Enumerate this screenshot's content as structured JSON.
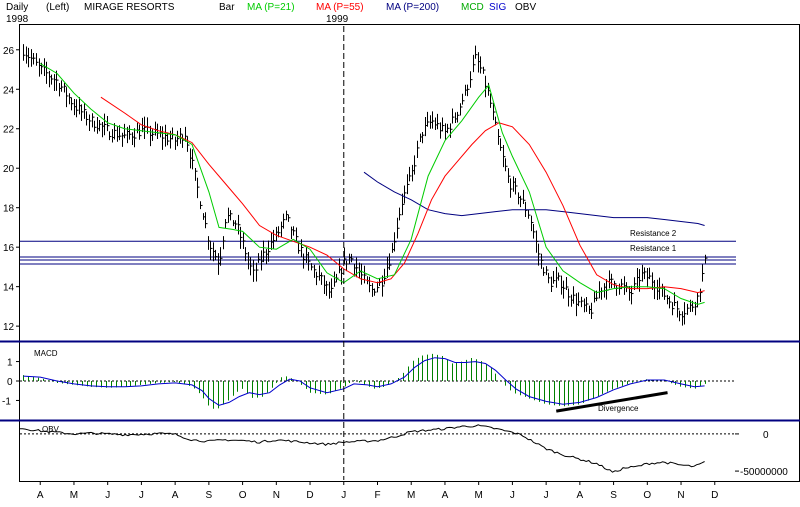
{
  "header": {
    "period": "Daily",
    "scale_side": "(Left)",
    "symbol": "MIRAGE RESORTS",
    "chart_style": "Bar",
    "legend": [
      {
        "label": "MA (P=21)",
        "color": "#00cc00"
      },
      {
        "label": "MA (P=55)",
        "color": "#ff0000"
      },
      {
        "label": "MA (P=200)",
        "color": "#000080"
      },
      {
        "label": "MCD",
        "color": "#00aa00"
      },
      {
        "label": "SIG",
        "color": "#0000cc"
      },
      {
        "label": "OBV",
        "color": "#000000"
      }
    ],
    "year_labels": [
      "1998",
      "1999"
    ]
  },
  "colors": {
    "price_bars": "#000000",
    "ma21": "#00cc00",
    "ma55": "#ff0000",
    "ma200": "#000080",
    "macd_hist": "#008000",
    "macd_signal": "#0000cc",
    "panel_divider": "#000080",
    "resistance": "#000080"
  },
  "chart_data": [
    {
      "type": "bar",
      "panel": "price",
      "x_axis": "month",
      "ylim": [
        11.5,
        26.8
      ],
      "y_ticks": [
        12,
        14,
        16,
        18,
        20,
        22,
        24,
        26
      ],
      "x_month_labels": [
        "A",
        "M",
        "J",
        "J",
        "A",
        "S",
        "O",
        "N",
        "D",
        "J",
        "F",
        "M",
        "A",
        "M",
        "J",
        "J",
        "A",
        "S",
        "O",
        "N",
        "D"
      ],
      "x_range_months": [
        -0.6,
        20.6
      ],
      "year_divider_month": 9,
      "close_series_monthly": [
        [
          -0.5,
          26.0
        ],
        [
          0.0,
          25.0
        ],
        [
          0.5,
          24.4
        ],
        [
          1.0,
          23.2
        ],
        [
          1.5,
          22.4
        ],
        [
          2.0,
          21.9
        ],
        [
          2.5,
          21.6
        ],
        [
          3.0,
          21.9
        ],
        [
          3.5,
          21.7
        ],
        [
          4.0,
          21.4
        ],
        [
          4.3,
          21.8
        ],
        [
          4.6,
          19.5
        ],
        [
          5.0,
          16.2
        ],
        [
          5.3,
          15.2
        ],
        [
          5.5,
          17.6
        ],
        [
          5.8,
          17.2
        ],
        [
          6.0,
          16.2
        ],
        [
          6.3,
          14.6
        ],
        [
          6.6,
          15.6
        ],
        [
          7.0,
          16.6
        ],
        [
          7.3,
          17.5
        ],
        [
          7.6,
          16.2
        ],
        [
          8.0,
          15.0
        ],
        [
          8.3,
          14.4
        ],
        [
          8.6,
          13.6
        ],
        [
          9.0,
          15.2
        ],
        [
          9.2,
          15.5
        ],
        [
          9.5,
          14.6
        ],
        [
          9.8,
          13.8
        ],
        [
          10.1,
          14.2
        ],
        [
          10.4,
          15.6
        ],
        [
          10.7,
          18.2
        ],
        [
          11.0,
          19.6
        ],
        [
          11.3,
          21.8
        ],
        [
          11.6,
          22.4
        ],
        [
          12.0,
          21.8
        ],
        [
          12.3,
          22.6
        ],
        [
          12.6,
          23.8
        ],
        [
          12.9,
          25.6
        ],
        [
          13.1,
          24.8
        ],
        [
          13.3,
          23.6
        ],
        [
          13.6,
          21.2
        ],
        [
          13.9,
          19.3
        ],
        [
          14.2,
          18.6
        ],
        [
          14.5,
          17.6
        ],
        [
          14.8,
          15.4
        ],
        [
          15.1,
          14.2
        ],
        [
          15.4,
          14.3
        ],
        [
          15.7,
          13.6
        ],
        [
          16.0,
          13.1
        ],
        [
          16.3,
          12.7
        ],
        [
          16.6,
          13.9
        ],
        [
          16.9,
          14.2
        ],
        [
          17.2,
          14.1
        ],
        [
          17.5,
          13.6
        ],
        [
          17.8,
          14.6
        ],
        [
          18.1,
          14.4
        ],
        [
          18.4,
          13.8
        ],
        [
          18.7,
          13.2
        ],
        [
          19.0,
          12.7
        ],
        [
          19.3,
          13.0
        ],
        [
          19.5,
          13.5
        ],
        [
          19.7,
          15.2
        ]
      ],
      "ma21_monthly": [
        [
          0.0,
          25.3
        ],
        [
          0.5,
          24.8
        ],
        [
          1.0,
          23.8
        ],
        [
          1.5,
          23.0
        ],
        [
          2.0,
          22.3
        ],
        [
          2.5,
          22.0
        ],
        [
          3.0,
          21.9
        ],
        [
          3.5,
          21.8
        ],
        [
          4.0,
          21.7
        ],
        [
          4.5,
          21.2
        ],
        [
          5.0,
          18.8
        ],
        [
          5.3,
          17.0
        ],
        [
          5.7,
          16.9
        ],
        [
          6.0,
          16.8
        ],
        [
          6.5,
          16.0
        ],
        [
          7.0,
          15.9
        ],
        [
          7.5,
          16.4
        ],
        [
          8.0,
          15.9
        ],
        [
          8.5,
          14.7
        ],
        [
          9.0,
          14.2
        ],
        [
          9.5,
          14.8
        ],
        [
          10.0,
          14.4
        ],
        [
          10.5,
          14.6
        ],
        [
          11.0,
          16.4
        ],
        [
          11.5,
          19.6
        ],
        [
          12.0,
          21.4
        ],
        [
          12.5,
          22.4
        ],
        [
          13.0,
          23.6
        ],
        [
          13.3,
          24.2
        ],
        [
          13.7,
          21.8
        ],
        [
          14.0,
          20.6
        ],
        [
          14.5,
          18.8
        ],
        [
          15.0,
          16.0
        ],
        [
          15.5,
          14.8
        ],
        [
          16.0,
          14.2
        ],
        [
          16.5,
          13.7
        ],
        [
          17.0,
          13.9
        ],
        [
          17.5,
          14.0
        ],
        [
          18.0,
          14.0
        ],
        [
          18.5,
          13.9
        ],
        [
          19.0,
          13.4
        ],
        [
          19.5,
          13.1
        ],
        [
          19.7,
          13.2
        ]
      ],
      "ma55_monthly": [
        [
          1.8,
          23.6
        ],
        [
          2.5,
          22.8
        ],
        [
          3.0,
          22.2
        ],
        [
          3.5,
          21.9
        ],
        [
          4.0,
          21.7
        ],
        [
          4.5,
          21.3
        ],
        [
          5.0,
          20.2
        ],
        [
          5.5,
          19.2
        ],
        [
          6.0,
          18.2
        ],
        [
          6.5,
          17.1
        ],
        [
          7.0,
          16.6
        ],
        [
          7.5,
          16.3
        ],
        [
          8.0,
          16.0
        ],
        [
          8.5,
          15.6
        ],
        [
          9.0,
          14.9
        ],
        [
          9.5,
          14.4
        ],
        [
          10.0,
          14.2
        ],
        [
          10.4,
          14.4
        ],
        [
          10.8,
          15.2
        ],
        [
          11.2,
          16.7
        ],
        [
          11.6,
          18.4
        ],
        [
          12.0,
          19.6
        ],
        [
          12.4,
          20.4
        ],
        [
          12.8,
          21.2
        ],
        [
          13.2,
          21.9
        ],
        [
          13.6,
          22.3
        ],
        [
          14.0,
          22.1
        ],
        [
          14.5,
          21.2
        ],
        [
          15.0,
          19.8
        ],
        [
          15.5,
          18.1
        ],
        [
          16.0,
          16.1
        ],
        [
          16.5,
          14.6
        ],
        [
          17.0,
          14.1
        ],
        [
          17.5,
          13.9
        ],
        [
          18.0,
          13.9
        ],
        [
          18.5,
          14.0
        ],
        [
          19.0,
          13.9
        ],
        [
          19.5,
          13.7
        ],
        [
          19.7,
          13.8
        ]
      ],
      "ma200_monthly": [
        [
          9.6,
          19.8
        ],
        [
          10.0,
          19.3
        ],
        [
          10.5,
          18.8
        ],
        [
          11.0,
          18.4
        ],
        [
          11.5,
          17.9
        ],
        [
          12.0,
          17.7
        ],
        [
          12.5,
          17.6
        ],
        [
          13.0,
          17.7
        ],
        [
          13.5,
          17.8
        ],
        [
          14.0,
          17.9
        ],
        [
          14.5,
          17.9
        ],
        [
          15.0,
          17.9
        ],
        [
          15.5,
          17.8
        ],
        [
          16.0,
          17.7
        ],
        [
          16.5,
          17.6
        ],
        [
          17.0,
          17.5
        ],
        [
          17.5,
          17.5
        ],
        [
          18.0,
          17.5
        ],
        [
          18.5,
          17.4
        ],
        [
          19.0,
          17.3
        ],
        [
          19.5,
          17.2
        ],
        [
          19.7,
          17.1
        ]
      ],
      "resistance_lines": [
        {
          "label": "Resistance 2",
          "values": [
            16.3,
            15.5
          ]
        },
        {
          "label": "Resistance 1",
          "values": [
            15.35,
            15.15
          ]
        }
      ]
    },
    {
      "type": "bar",
      "panel": "macd",
      "title": "MACD",
      "ylim": [
        -1.8,
        1.8
      ],
      "y_ticks": [
        1,
        0,
        -1
      ],
      "zero_line": 0,
      "histogram_monthly": [
        [
          -0.5,
          0.3
        ],
        [
          0.0,
          0.15
        ],
        [
          0.5,
          -0.1
        ],
        [
          1.0,
          -0.2
        ],
        [
          1.5,
          -0.3
        ],
        [
          2.0,
          -0.35
        ],
        [
          2.5,
          -0.3
        ],
        [
          3.0,
          -0.2
        ],
        [
          3.5,
          -0.1
        ],
        [
          4.0,
          -0.05
        ],
        [
          4.5,
          -0.3
        ],
        [
          4.8,
          -0.8
        ],
        [
          5.0,
          -1.3
        ],
        [
          5.2,
          -1.5
        ],
        [
          5.5,
          -1.1
        ],
        [
          5.8,
          -0.6
        ],
        [
          6.0,
          -0.4
        ],
        [
          6.3,
          -0.9
        ],
        [
          6.6,
          -0.8
        ],
        [
          7.0,
          -0.1
        ],
        [
          7.2,
          0.3
        ],
        [
          7.5,
          0.1
        ],
        [
          7.8,
          -0.3
        ],
        [
          8.0,
          -0.6
        ],
        [
          8.5,
          -0.7
        ],
        [
          9.0,
          -0.3
        ],
        [
          9.3,
          0.05
        ],
        [
          9.6,
          -0.2
        ],
        [
          9.9,
          -0.4
        ],
        [
          10.2,
          -0.3
        ],
        [
          10.5,
          -0.05
        ],
        [
          10.8,
          0.5
        ],
        [
          11.0,
          1.0
        ],
        [
          11.3,
          1.3
        ],
        [
          11.6,
          1.4
        ],
        [
          11.9,
          1.3
        ],
        [
          12.2,
          0.9
        ],
        [
          12.5,
          1.0
        ],
        [
          12.8,
          1.2
        ],
        [
          13.1,
          1.0
        ],
        [
          13.4,
          0.6
        ],
        [
          13.7,
          -0.1
        ],
        [
          14.0,
          -0.6
        ],
        [
          14.5,
          -0.9
        ],
        [
          15.0,
          -1.2
        ],
        [
          15.5,
          -1.3
        ],
        [
          16.0,
          -1.2
        ],
        [
          16.5,
          -0.8
        ],
        [
          17.0,
          -0.4
        ],
        [
          17.5,
          -0.1
        ],
        [
          18.0,
          0.1
        ],
        [
          18.5,
          0.0
        ],
        [
          19.0,
          -0.3
        ],
        [
          19.4,
          -0.4
        ],
        [
          19.7,
          -0.15
        ]
      ],
      "signal_monthly": [
        [
          -0.5,
          0.25
        ],
        [
          0.0,
          0.2
        ],
        [
          0.5,
          0.0
        ],
        [
          1.0,
          -0.15
        ],
        [
          1.5,
          -0.25
        ],
        [
          2.0,
          -0.3
        ],
        [
          2.5,
          -0.3
        ],
        [
          3.0,
          -0.25
        ],
        [
          3.5,
          -0.15
        ],
        [
          4.0,
          -0.1
        ],
        [
          4.5,
          -0.2
        ],
        [
          4.8,
          -0.5
        ],
        [
          5.0,
          -0.9
        ],
        [
          5.3,
          -1.25
        ],
        [
          5.6,
          -1.1
        ],
        [
          5.9,
          -0.8
        ],
        [
          6.2,
          -0.6
        ],
        [
          6.5,
          -0.7
        ],
        [
          6.8,
          -0.6
        ],
        [
          7.1,
          -0.2
        ],
        [
          7.4,
          0.1
        ],
        [
          7.7,
          0.0
        ],
        [
          8.0,
          -0.35
        ],
        [
          8.5,
          -0.6
        ],
        [
          9.0,
          -0.4
        ],
        [
          9.3,
          -0.15
        ],
        [
          9.7,
          -0.2
        ],
        [
          10.0,
          -0.3
        ],
        [
          10.4,
          -0.15
        ],
        [
          10.8,
          0.2
        ],
        [
          11.1,
          0.7
        ],
        [
          11.4,
          1.05
        ],
        [
          11.7,
          1.2
        ],
        [
          12.0,
          1.15
        ],
        [
          12.3,
          0.95
        ],
        [
          12.6,
          0.95
        ],
        [
          12.9,
          1.0
        ],
        [
          13.2,
          0.9
        ],
        [
          13.5,
          0.55
        ],
        [
          13.8,
          0.05
        ],
        [
          14.1,
          -0.4
        ],
        [
          14.5,
          -0.8
        ],
        [
          15.0,
          -1.05
        ],
        [
          15.5,
          -1.2
        ],
        [
          16.0,
          -1.1
        ],
        [
          16.5,
          -0.85
        ],
        [
          17.0,
          -0.45
        ],
        [
          17.5,
          -0.15
        ],
        [
          18.0,
          0.05
        ],
        [
          18.5,
          0.05
        ],
        [
          19.0,
          -0.15
        ],
        [
          19.4,
          -0.3
        ],
        [
          19.7,
          -0.25
        ]
      ],
      "divergence": {
        "label": "Divergence",
        "from": [
          15.3,
          -1.55
        ],
        "to": [
          18.6,
          -0.6
        ]
      }
    },
    {
      "type": "line",
      "panel": "obv",
      "title": "OBV",
      "ylim": [
        -62000000,
        12000000
      ],
      "y_ticks": [
        0,
        -50000000
      ],
      "y_tick_labels": [
        "0",
        "-50000000"
      ],
      "reference_line": 0,
      "obv_monthly": [
        [
          -0.6,
          8000000
        ],
        [
          0.0,
          4000000
        ],
        [
          0.5,
          2000000
        ],
        [
          1.0,
          0
        ],
        [
          1.5,
          1000000
        ],
        [
          2.0,
          0
        ],
        [
          2.5,
          -1000000
        ],
        [
          3.0,
          -500000
        ],
        [
          3.5,
          500000
        ],
        [
          4.0,
          -500000
        ],
        [
          4.5,
          -8000000
        ],
        [
          5.0,
          -10000000
        ],
        [
          5.5,
          -8000000
        ],
        [
          6.0,
          -9000000
        ],
        [
          6.5,
          -11000000
        ],
        [
          7.0,
          -8000000
        ],
        [
          7.5,
          -10000000
        ],
        [
          8.0,
          -12000000
        ],
        [
          8.5,
          -14000000
        ],
        [
          9.0,
          -11000000
        ],
        [
          9.5,
          -10000000
        ],
        [
          10.0,
          -9000000
        ],
        [
          10.5,
          -4000000
        ],
        [
          11.0,
          3000000
        ],
        [
          11.5,
          5000000
        ],
        [
          12.0,
          7000000
        ],
        [
          12.5,
          10000000
        ],
        [
          13.0,
          11000000
        ],
        [
          13.5,
          7000000
        ],
        [
          14.0,
          2000000
        ],
        [
          14.3,
          -2000000
        ],
        [
          14.6,
          -10000000
        ],
        [
          15.0,
          -20000000
        ],
        [
          15.5,
          -28000000
        ],
        [
          16.0,
          -34000000
        ],
        [
          16.5,
          -40000000
        ],
        [
          17.0,
          -52000000
        ],
        [
          17.3,
          -46000000
        ],
        [
          17.7,
          -44000000
        ],
        [
          18.0,
          -40000000
        ],
        [
          18.5,
          -38000000
        ],
        [
          19.0,
          -42000000
        ],
        [
          19.4,
          -44000000
        ],
        [
          19.7,
          -38000000
        ]
      ]
    }
  ]
}
